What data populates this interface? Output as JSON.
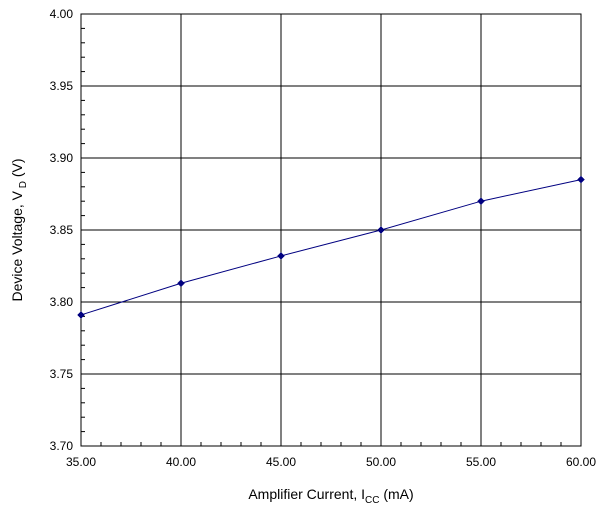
{
  "chart_data": {
    "type": "line",
    "xlabel": {
      "main": "Amplifier Current, I",
      "sub": "CC",
      "unit": " (mA)"
    },
    "ylabel": {
      "main": "Device Voltage, V",
      "sub": " D",
      "unit": " (V)"
    },
    "xlim": [
      35,
      60
    ],
    "ylim": [
      3.7,
      4.0
    ],
    "x_ticks": [
      35,
      40,
      45,
      50,
      55,
      60
    ],
    "y_ticks": [
      3.7,
      3.75,
      3.8,
      3.85,
      3.9,
      3.95,
      4.0
    ],
    "x_tick_labels": [
      "35.00",
      "40.00",
      "45.00",
      "50.00",
      "55.00",
      "60.00"
    ],
    "y_tick_labels": [
      "3.70",
      "3.75",
      "3.80",
      "3.85",
      "3.90",
      "3.95",
      "4.00"
    ],
    "grid": true,
    "legend": "none",
    "series": [
      {
        "color": "#000080",
        "x": [
          35,
          40,
          45,
          50,
          55,
          60
        ],
        "y": [
          3.791,
          3.813,
          3.832,
          3.85,
          3.87,
          3.885
        ]
      }
    ]
  }
}
